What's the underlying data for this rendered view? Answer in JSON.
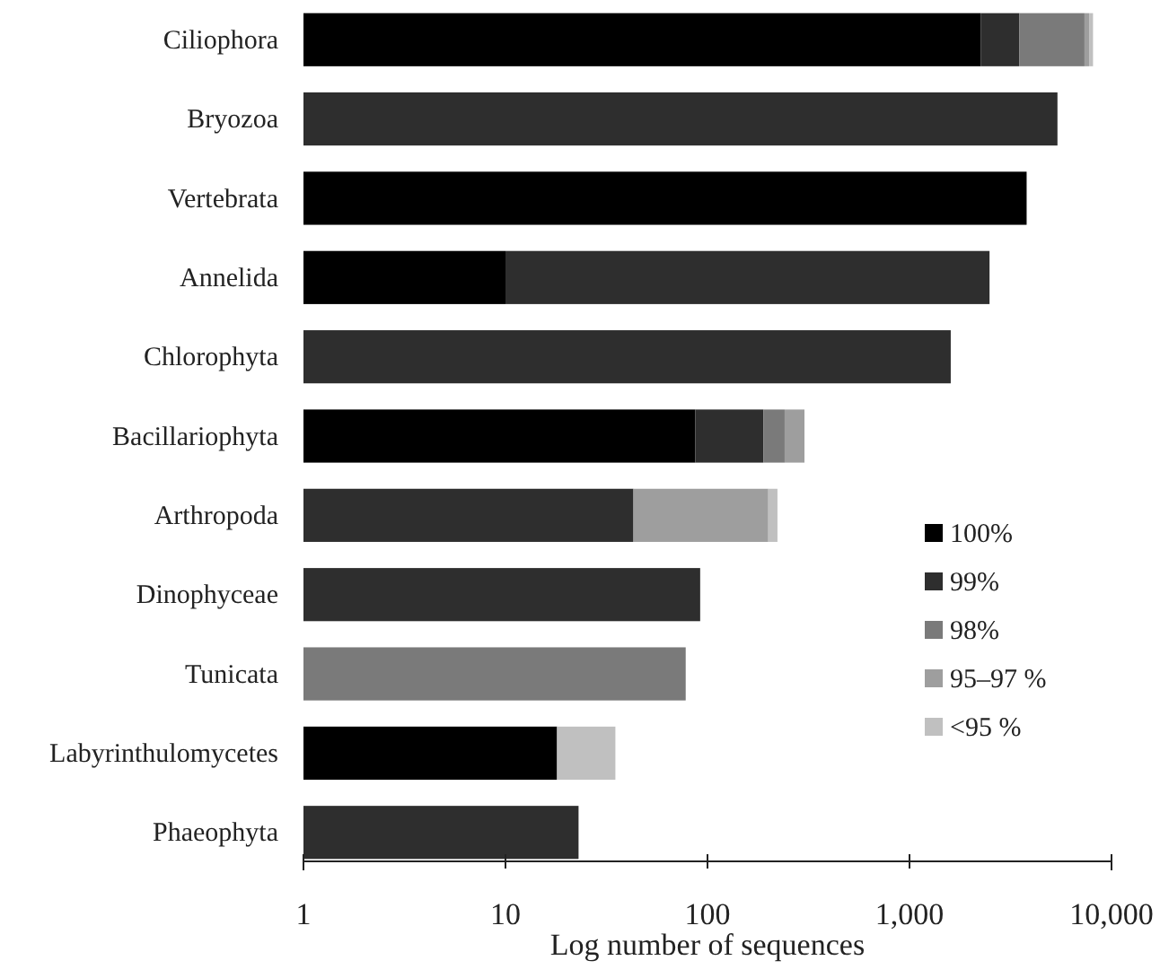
{
  "chart_data": {
    "type": "bar",
    "orientation": "horizontal",
    "stacked": true,
    "log": "x",
    "xlabel": "Log number of sequences",
    "categories": [
      "Ciliophora",
      "Bryozoa",
      "Vertebrata",
      "Annelida",
      "Chlorophyta",
      "Bacillariophyta",
      "Arthropoda",
      "Dinophyceae",
      "Tunicata",
      "Labyrinthulomycetes",
      "Phaeophyta"
    ],
    "xlim": [
      1,
      10000
    ],
    "xticks": [
      1,
      10,
      100,
      {
        "value": 1000,
        "label": "1,000"
      },
      {
        "value": 10000,
        "label": "10,000"
      }
    ],
    "legend": "right",
    "grid": false,
    "series": [
      {
        "name": "100%",
        "color": "#000000",
        "values": [
          2250,
          null,
          3800,
          10,
          null,
          87,
          null,
          null,
          null,
          18,
          null
        ]
      },
      {
        "name": "99%",
        "color": "#2e2e2e",
        "values": [
          1250,
          5400,
          null,
          2480,
          1600,
          102,
          43,
          92,
          null,
          null,
          23
        ]
      },
      {
        "name": "98%",
        "color": "#7a7a7a",
        "values": [
          3850,
          null,
          null,
          null,
          null,
          52,
          null,
          null,
          78,
          null,
          null
        ]
      },
      {
        "name": "95–97 %",
        "color": "#9e9e9e",
        "values": [
          400,
          null,
          null,
          null,
          null,
          61,
          157,
          null,
          null,
          null,
          null
        ]
      },
      {
        "name": "<95 %",
        "color": "#c0c0c0",
        "values": [
          350,
          null,
          null,
          null,
          null,
          null,
          22,
          null,
          null,
          17,
          null
        ]
      }
    ]
  }
}
